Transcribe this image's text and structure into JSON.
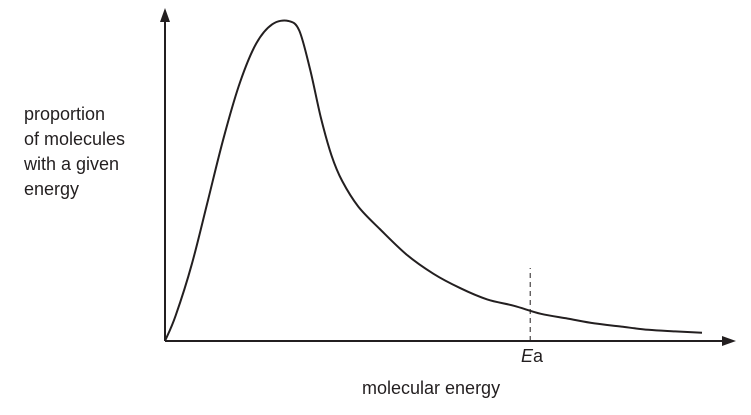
{
  "chart_data": {
    "type": "line",
    "ylabel_lines": [
      "proportion",
      "of molecules",
      "with a given",
      "energy"
    ],
    "xlabel": "molecular energy",
    "annotation": {
      "label_italic": "E",
      "label_rest": "a",
      "x": 0.68,
      "style": "dashed vertical line"
    },
    "xlim": [
      0,
      1
    ],
    "ylim": [
      0,
      1
    ],
    "grid": false,
    "axis_ticks": false,
    "series": [
      {
        "values_x": [
          0.0,
          0.02,
          0.05,
          0.08,
          0.11,
          0.14,
          0.17,
          0.2,
          0.23,
          0.25,
          0.27,
          0.29,
          0.31,
          0.33,
          0.36,
          0.4,
          0.45,
          0.5,
          0.55,
          0.6,
          0.65,
          0.7,
          0.75,
          0.8,
          0.85,
          0.9,
          0.95,
          1.0
        ],
        "values_y": [
          0.0,
          0.08,
          0.24,
          0.44,
          0.64,
          0.81,
          0.93,
          0.99,
          1.0,
          0.97,
          0.85,
          0.7,
          0.58,
          0.5,
          0.42,
          0.35,
          0.27,
          0.21,
          0.165,
          0.13,
          0.11,
          0.085,
          0.07,
          0.055,
          0.045,
          0.035,
          0.03,
          0.026
        ]
      }
    ]
  }
}
